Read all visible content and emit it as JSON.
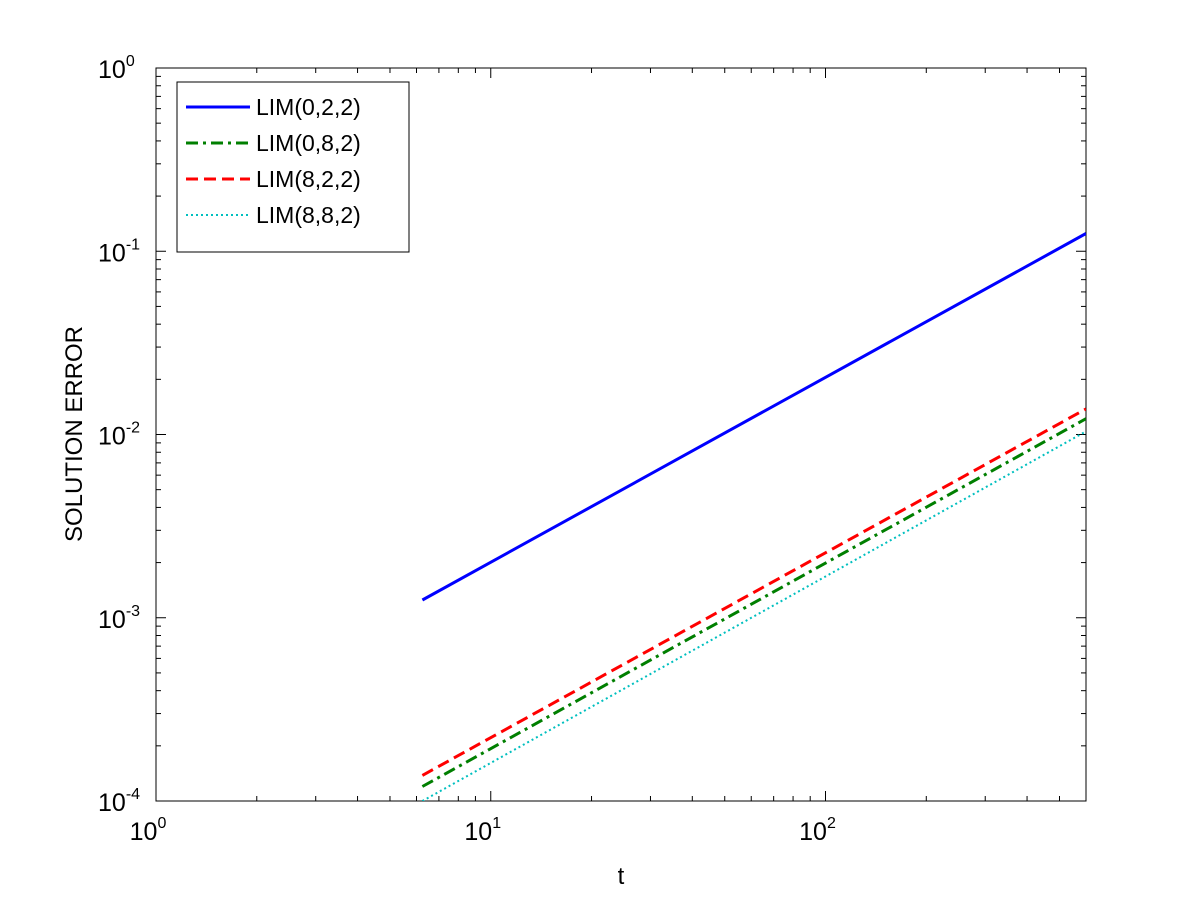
{
  "chart_data": {
    "type": "line",
    "title": "",
    "xlabel": "t",
    "ylabel": "SOLUTION ERROR",
    "xscale": "log",
    "yscale": "log",
    "xlim": [
      1,
      600
    ],
    "ylim": [
      0.0001,
      1
    ],
    "grid": false,
    "legend_position": "top-left",
    "x_ticks": [
      {
        "value": 1,
        "base": "10",
        "exp": "0"
      },
      {
        "value": 10,
        "base": "10",
        "exp": "1"
      },
      {
        "value": 100,
        "base": "10",
        "exp": "2"
      }
    ],
    "y_ticks": [
      {
        "value": 0.0001,
        "base": "10",
        "exp": "-4"
      },
      {
        "value": 0.001,
        "base": "10",
        "exp": "-3"
      },
      {
        "value": 0.01,
        "base": "10",
        "exp": "-2"
      },
      {
        "value": 0.1,
        "base": "10",
        "exp": "-1"
      },
      {
        "value": 1,
        "base": "10",
        "exp": "0"
      }
    ],
    "series": [
      {
        "name": "LIM(0,2,2)",
        "color": "#0000ff",
        "style": "solid",
        "x": [
          6.25,
          600
        ],
        "y": [
          0.00125,
          0.125
        ]
      },
      {
        "name": "LIM(0,8,2)",
        "color": "#007f00",
        "style": "dashdot",
        "x": [
          6.25,
          600
        ],
        "y": [
          0.00012,
          0.0122
        ]
      },
      {
        "name": "LIM(8,2,2)",
        "color": "#ff0000",
        "style": "dashed",
        "x": [
          6.25,
          600
        ],
        "y": [
          0.000138,
          0.0138
        ]
      },
      {
        "name": "LIM(8,8,2)",
        "color": "#00bfbf",
        "style": "dotted",
        "x": [
          6.25,
          600
        ],
        "y": [
          0.0001,
          0.0104
        ]
      }
    ]
  }
}
